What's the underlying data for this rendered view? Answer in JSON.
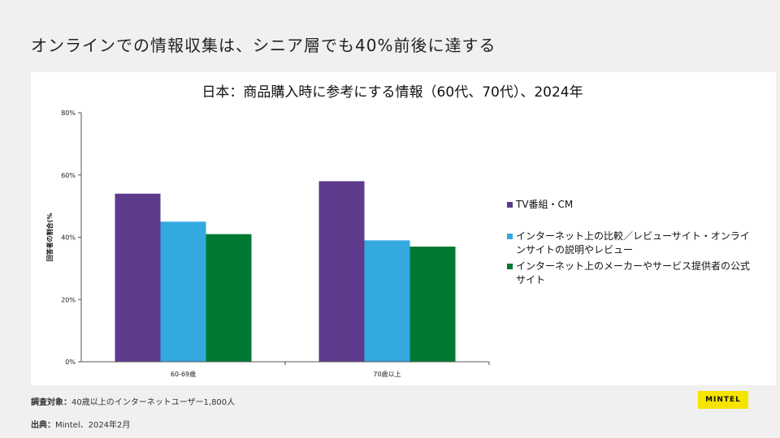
{
  "slide": {
    "title": "オンラインでの情報収集は、シニア層でも40%前後に達する"
  },
  "chart_data": {
    "type": "bar",
    "title": "日本：商品購入時に参考にする情報（60代、70代）、2024年",
    "xlabel": "",
    "ylabel": "回答者の割合(%",
    "ylim": [
      0,
      80
    ],
    "yticks": [
      0,
      20,
      40,
      60,
      80
    ],
    "ytick_labels": [
      "0%",
      "20%",
      "40%",
      "60%",
      "80%"
    ],
    "categories": [
      "60-69歳",
      "70歳以上"
    ],
    "series": [
      {
        "name": "TV番組・CM",
        "color": "#5e3a8c",
        "values": [
          54,
          58
        ]
      },
      {
        "name": "インターネット上の比較／レビューサイト・オンラインサイトの説明やレビュー",
        "color": "#33a9e0",
        "values": [
          45,
          39
        ]
      },
      {
        "name": "インターネット上のメーカーやサービス提供者の公式サイト",
        "color": "#007a33",
        "values": [
          41,
          37
        ]
      }
    ],
    "legend_position": "right",
    "grid": false
  },
  "legend": {
    "items": [
      {
        "label": "TV番組・CM",
        "color": "#5e3a8c"
      },
      {
        "label": "インターネット上の比較／レビューサイト・オンラインサイトの説明やレビュー",
        "color": "#33a9e0"
      },
      {
        "label": "インターネット上のメーカーやサービス提供者の公式サイト",
        "color": "#007a33"
      }
    ]
  },
  "footer": {
    "survey_label": "調査対象：",
    "survey_value": "40歳以上のインターネットユーザー1,800人",
    "source_label": "出典：",
    "source_value": "Mintel、2024年2月"
  },
  "logo": {
    "text": "MINTEL",
    "color": "#f5e400"
  }
}
